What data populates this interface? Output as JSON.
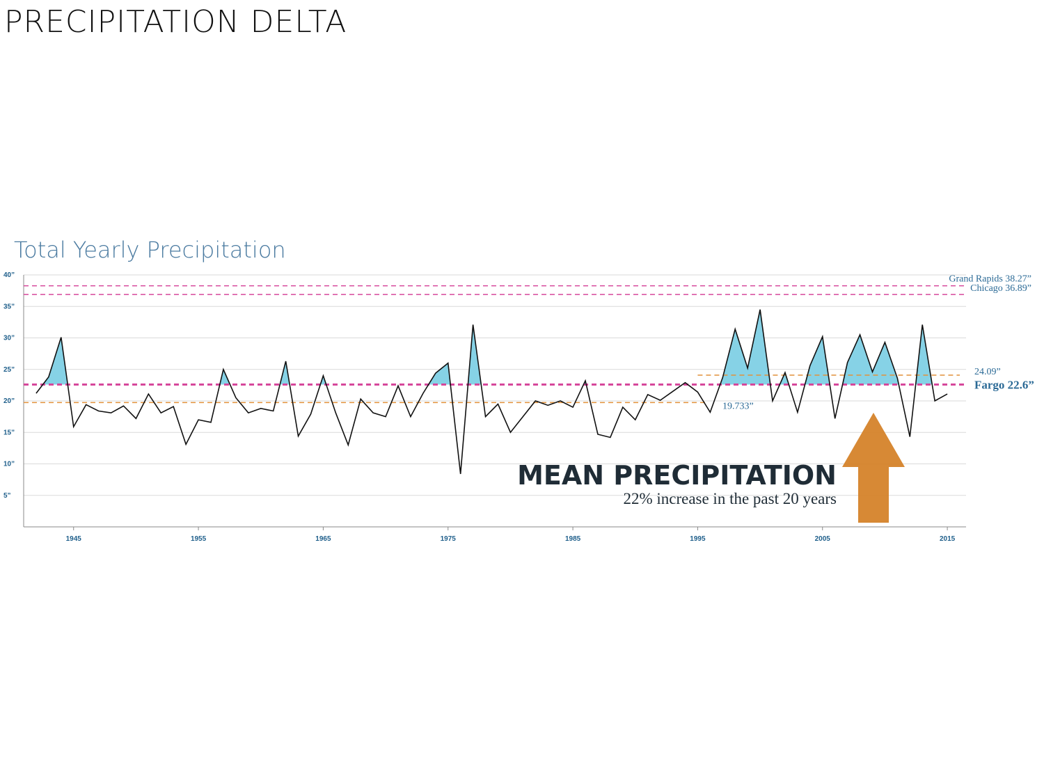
{
  "page": {
    "title": "PRECIPITATION DELTA"
  },
  "chart_data": {
    "type": "line",
    "title": "Total Yearly Precipitation",
    "xlabel": "",
    "ylabel": "",
    "xlim": [
      1941,
      2016
    ],
    "ylim": [
      0,
      40
    ],
    "y_ticks": [
      5,
      10,
      15,
      20,
      25,
      30,
      35,
      40
    ],
    "y_tick_labels": [
      "5”",
      "10”",
      "15”",
      "20”",
      "25”",
      "30”",
      "35”",
      "40”"
    ],
    "x_ticks": [
      1945,
      1955,
      1965,
      1975,
      1985,
      1995,
      2005,
      2015
    ],
    "x_tick_labels": [
      "1945",
      "1955",
      "1965",
      "1975",
      "1985",
      "1995",
      "2005",
      "2015"
    ],
    "grid": true,
    "series": [
      {
        "x": [
          1942,
          1943,
          1944,
          1945,
          1946,
          1947,
          1948,
          1949,
          1950,
          1951,
          1952,
          1953,
          1954,
          1955,
          1956,
          1957,
          1958,
          1959,
          1960,
          1961,
          1962,
          1963,
          1964,
          1965,
          1966,
          1967,
          1968,
          1969,
          1970,
          1971,
          1972,
          1973,
          1974,
          1975,
          1976,
          1977,
          1978,
          1979,
          1980,
          1981,
          1982,
          1983,
          1984,
          1985,
          1986,
          1987,
          1988,
          1989,
          1990,
          1991,
          1992,
          1993,
          1994,
          1995,
          1996,
          1997,
          1998,
          1999,
          2000,
          2001,
          2002,
          2003,
          2004,
          2005,
          2006,
          2007,
          2008,
          2009,
          2010,
          2011,
          2012,
          2013,
          2014,
          2015
        ],
        "values": [
          21.2,
          23.8,
          30.1,
          15.9,
          19.4,
          18.4,
          18.1,
          19.2,
          17.2,
          21.1,
          18.1,
          19.1,
          13.1,
          17.0,
          16.6,
          25.0,
          20.5,
          18.1,
          18.8,
          18.4,
          26.3,
          14.4,
          17.9,
          24.0,
          18.1,
          13.0,
          20.3,
          18.1,
          17.5,
          22.4,
          17.5,
          21.2,
          24.4,
          26.0,
          8.4,
          32.1,
          17.5,
          19.5,
          15.0,
          17.5,
          20.0,
          19.3,
          20.0,
          19.0,
          23.2,
          14.7,
          14.2,
          19.0,
          17.0,
          21.0,
          20.1,
          21.5,
          22.9,
          21.4,
          18.2,
          23.7,
          31.4,
          25.2,
          34.5,
          20.0,
          24.5,
          18.2,
          25.6,
          30.2,
          17.2,
          26.1,
          30.5,
          24.6,
          29.3,
          23.6,
          14.3,
          32.1,
          20.0,
          21.1
        ]
      }
    ],
    "reference_lines": [
      {
        "label": "Grand Rapids 38.27”",
        "value": 38.27,
        "color": "#d6479b"
      },
      {
        "label": "Chicago 36.89”",
        "value": 36.89,
        "color": "#d6479b"
      },
      {
        "label": "Fargo 22.6”",
        "value": 22.6,
        "color": "#d6479b"
      }
    ],
    "period_means": [
      {
        "label": "19.733”",
        "value": 19.733,
        "x_start": 1941,
        "x_end": 1995.8,
        "color": "#e2913a"
      },
      {
        "label": "24.09”",
        "value": 24.09,
        "x_start": 1995,
        "x_end": 2016,
        "color": "#e2913a"
      }
    ],
    "fill_above_color": "#86d2e6",
    "line_color": "#111111",
    "annotation": {
      "headline": "MEAN PRECIPITATION",
      "subtext": "22% increase in the past 20 years",
      "arrow_color": "#d5832a"
    }
  }
}
